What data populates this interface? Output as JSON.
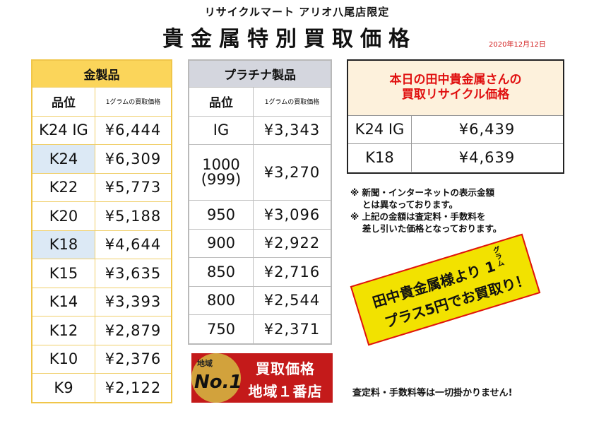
{
  "subtitle": "リサイクルマート アリオ八尾店限定",
  "title": "貴金属特別買取価格",
  "date": "2020年12月12日",
  "gold_table": {
    "header": "金製品",
    "col_grade": "品位",
    "col_price": "1グラムの買取価格",
    "rows": [
      {
        "grade": "K24 IG",
        "price": "¥6,444"
      },
      {
        "grade": "K24",
        "price": "¥6,309"
      },
      {
        "grade": "K22",
        "price": "¥5,773"
      },
      {
        "grade": "K20",
        "price": "¥5,188"
      },
      {
        "grade": "K18",
        "price": "¥4,644"
      },
      {
        "grade": "K15",
        "price": "¥3,635"
      },
      {
        "grade": "K14",
        "price": "¥3,393"
      },
      {
        "grade": "K12",
        "price": "¥2,879"
      },
      {
        "grade": "K10",
        "price": "¥2,376"
      },
      {
        "grade": "K9",
        "price": "¥2,122"
      }
    ]
  },
  "platinum_table": {
    "header": "プラチナ製品",
    "col_grade": "品位",
    "col_price": "1グラムの買取価格",
    "rows": [
      {
        "grade": "IG",
        "price": "¥3,343"
      },
      {
        "grade": "1000",
        "grade_sub": "(999)",
        "price": "¥3,270"
      },
      {
        "grade": "950",
        "price": "¥3,096"
      },
      {
        "grade": "900",
        "price": "¥2,922"
      },
      {
        "grade": "850",
        "price": "¥2,716"
      },
      {
        "grade": "800",
        "price": "¥2,544"
      },
      {
        "grade": "750",
        "price": "¥2,371"
      }
    ]
  },
  "tanaka_box": {
    "heading_line1": "本日の田中貴金属さんの",
    "heading_line2": "買取リサイクル価格",
    "rows": [
      {
        "grade": "K24 IG",
        "price": "¥6,439"
      },
      {
        "grade": "K18",
        "price": "¥4,639"
      }
    ]
  },
  "notes": [
    "※ 新聞・インターネットの表示金額",
    "　 とは異なっております。",
    "※ 上記の金額は査定料・手数料を",
    "　 差し引いた価格となっております。"
  ],
  "promo": {
    "line1": "田中貴金属様より 1",
    "gram": "グラム",
    "line2": "プラス5円でお買取り！"
  },
  "badge": {
    "chiki": "地域",
    "no1": "No.1",
    "text1": "買取価格",
    "text2": "地域１番店"
  },
  "footer": "査定料・手数料等は一切掛かりません!",
  "colors": {
    "gold_header": "#fbd55a",
    "platinum_header": "#d4d6de",
    "highlight_row": "#dce9f5",
    "accent_red": "#e01010",
    "promo_yellow": "#f2e200"
  }
}
